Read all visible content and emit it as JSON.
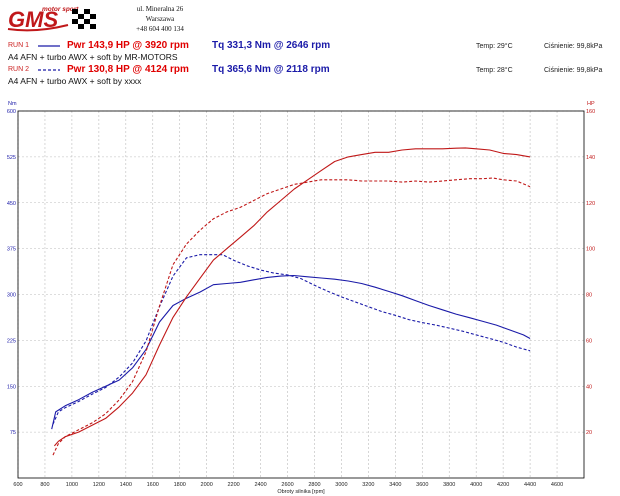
{
  "header": {
    "logo_text": "GMS",
    "logo_tagline": "motor sport",
    "address": [
      "ul. Mineralna 26",
      "Warszawa",
      "+48 604 400 134"
    ]
  },
  "runs": [
    {
      "label": "RUN 1",
      "power": "Pwr 143,9 HP @ 3920 rpm",
      "torque": "Tq 331,3 Nm @ 2646 rpm",
      "temp": "Temp: 29°C",
      "pressure": "Ciśnienie: 99,8kPa",
      "description": "A4 AFN + turbo AWX + soft by MR-MOTORS"
    },
    {
      "label": "RUN 2",
      "power": "Pwr 130,8 HP @ 4124 rpm",
      "torque": "Tq 365,6 Nm @ 2118 rpm",
      "temp": "Temp: 28°C",
      "pressure": "Ciśnienie: 99,8kPa",
      "description": "A4 AFN + turbo AWX + soft by xxxx"
    }
  ],
  "colors": {
    "torque": "#1a1aa8",
    "power": "#c01818",
    "grid": "#bcbcbc",
    "frame": "#000000"
  },
  "chart_data": {
    "type": "line",
    "xlabel": "Obroty silnika [rpm]",
    "ylabel_left": "Nm",
    "ylabel_right": "HP",
    "xlim": [
      600,
      4800
    ],
    "ylim_left": [
      0,
      600
    ],
    "ylim_right": [
      0,
      160
    ],
    "x_ticks": [
      600,
      800,
      1000,
      1200,
      1400,
      1600,
      1800,
      2000,
      2200,
      2400,
      2600,
      2800,
      3000,
      3200,
      3400,
      3600,
      3800,
      4000,
      4200,
      4400,
      4600
    ],
    "y_left_ticks": [
      75,
      150,
      225,
      300,
      375,
      450,
      525,
      600
    ],
    "y_right_ticks": [
      20,
      40,
      60,
      80,
      100,
      120,
      140,
      160
    ],
    "grid": true,
    "series": [
      {
        "name": "Tq RUN 1",
        "axis": "left",
        "style": "solid",
        "color": "#1a1aa8",
        "x": [
          850,
          880,
          950,
          1050,
          1150,
          1250,
          1350,
          1450,
          1550,
          1650,
          1750,
          1850,
          1950,
          2050,
          2150,
          2250,
          2350,
          2450,
          2550,
          2646,
          2750,
          2850,
          2950,
          3050,
          3150,
          3250,
          3350,
          3450,
          3550,
          3650,
          3750,
          3850,
          3950,
          4050,
          4150,
          4250,
          4350,
          4400
        ],
        "y": [
          80,
          108,
          118,
          128,
          140,
          150,
          160,
          180,
          210,
          255,
          282,
          294,
          304,
          316,
          318,
          320,
          324,
          328,
          330,
          331,
          329,
          327,
          325,
          322,
          318,
          312,
          305,
          298,
          290,
          282,
          275,
          268,
          262,
          256,
          250,
          242,
          234,
          228
        ]
      },
      {
        "name": "Tq RUN 2",
        "axis": "left",
        "style": "dashed",
        "color": "#1a1aa8",
        "x": [
          860,
          900,
          950,
          1050,
          1150,
          1250,
          1350,
          1450,
          1550,
          1650,
          1750,
          1850,
          1950,
          2050,
          2118,
          2200,
          2300,
          2400,
          2500,
          2600,
          2700,
          2800,
          2900,
          3000,
          3100,
          3200,
          3300,
          3400,
          3500,
          3600,
          3700,
          3800,
          3900,
          4000,
          4100,
          4200,
          4300,
          4400
        ],
        "y": [
          88,
          108,
          115,
          125,
          137,
          148,
          165,
          188,
          224,
          280,
          330,
          360,
          365,
          365,
          365,
          356,
          347,
          340,
          335,
          332,
          326,
          315,
          305,
          296,
          288,
          280,
          272,
          266,
          259,
          254,
          250,
          245,
          240,
          234,
          228,
          222,
          214,
          208
        ]
      },
      {
        "name": "Pwr RUN 1",
        "axis": "right",
        "style": "solid",
        "color": "#c01818",
        "x": [
          870,
          900,
          950,
          1050,
          1150,
          1250,
          1350,
          1450,
          1550,
          1650,
          1750,
          1850,
          1950,
          2050,
          2150,
          2250,
          2350,
          2450,
          2550,
          2650,
          2750,
          2850,
          2950,
          3050,
          3150,
          3250,
          3350,
          3450,
          3550,
          3650,
          3750,
          3850,
          3920,
          4000,
          4100,
          4200,
          4300,
          4400
        ],
        "y": [
          14,
          16,
          18,
          20,
          23,
          26,
          31,
          37,
          45,
          58,
          70,
          79,
          87,
          95,
          100,
          105,
          110,
          116,
          121,
          126,
          130,
          134,
          138,
          140,
          141,
          142,
          142,
          143,
          143.5,
          143.5,
          143.5,
          143.8,
          143.9,
          143.5,
          143,
          141.5,
          141,
          140
        ]
      },
      {
        "name": "Pwr RUN 2",
        "axis": "right",
        "style": "dashed",
        "color": "#c01818",
        "x": [
          860,
          900,
          950,
          1050,
          1150,
          1250,
          1350,
          1450,
          1550,
          1650,
          1750,
          1850,
          1950,
          2050,
          2150,
          2250,
          2350,
          2450,
          2550,
          2650,
          2750,
          2850,
          2950,
          3050,
          3150,
          3250,
          3350,
          3450,
          3550,
          3650,
          3750,
          3850,
          3950,
          4050,
          4124,
          4200,
          4300,
          4400
        ],
        "y": [
          10,
          15,
          18,
          21,
          24,
          28,
          34,
          42,
          55,
          75,
          93,
          102,
          108,
          113,
          116,
          118,
          121,
          124,
          126,
          128,
          129,
          130,
          130,
          130,
          129.5,
          129.5,
          129.5,
          129,
          129.5,
          129,
          129.5,
          130,
          130.5,
          130.5,
          130.8,
          130,
          129.5,
          127
        ]
      }
    ]
  }
}
